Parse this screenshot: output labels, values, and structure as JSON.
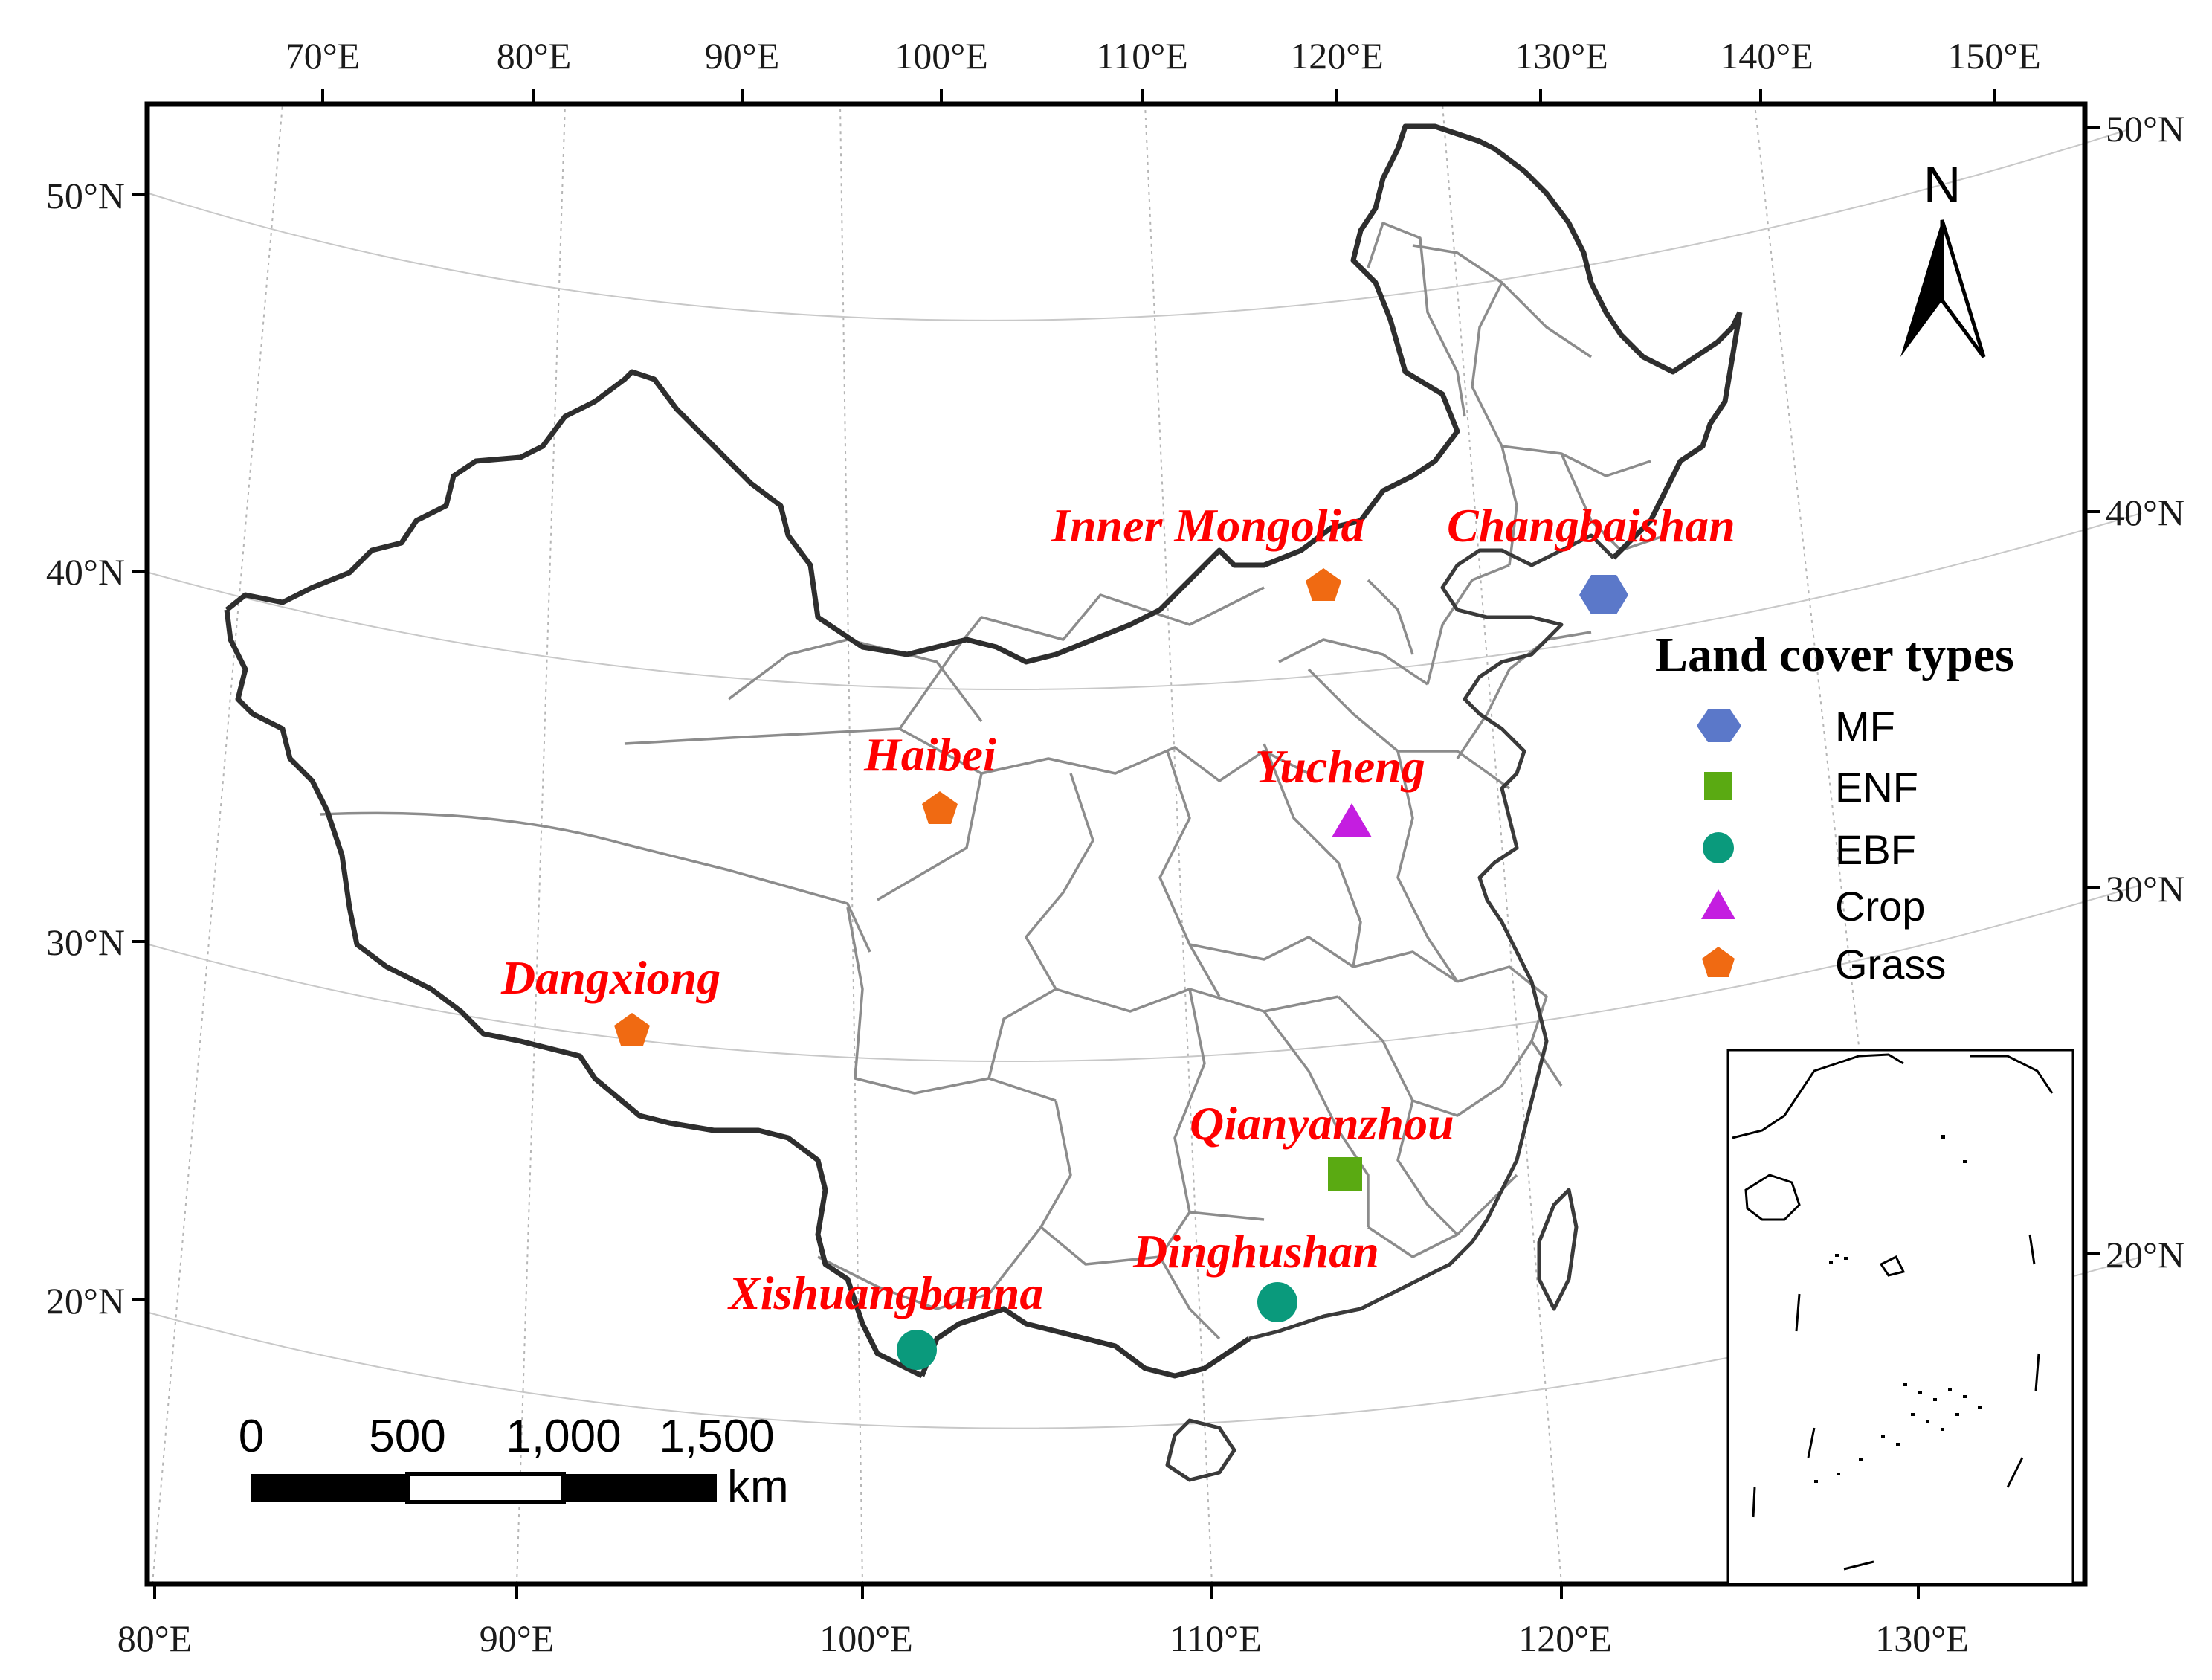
{
  "map": {
    "top_longitude_ticks": [
      "70°E",
      "80°E",
      "90°E",
      "100°E",
      "110°E",
      "120°E",
      "130°E",
      "140°E",
      "150°E"
    ],
    "bottom_longitude_ticks": [
      "80°E",
      "90°E",
      "100°E",
      "110°E",
      "120°E",
      "130°E"
    ],
    "left_latitude_ticks": [
      "50°N",
      "40°N",
      "30°N",
      "20°N"
    ],
    "right_latitude_ticks": [
      "50°N",
      "40°N",
      "30°N",
      "20°N"
    ],
    "north_arrow_label": "N"
  },
  "sites": [
    {
      "name": "Inner Mongolia",
      "type": "Grass"
    },
    {
      "name": "Changbaishan",
      "type": "MF"
    },
    {
      "name": "Haibei",
      "type": "Grass"
    },
    {
      "name": "Yucheng",
      "type": "Crop"
    },
    {
      "name": "Dangxiong",
      "type": "Grass"
    },
    {
      "name": "Qianyanzhou",
      "type": "ENF"
    },
    {
      "name": "Dinghushan",
      "type": "EBF"
    },
    {
      "name": "Xishuangbanna",
      "type": "EBF"
    }
  ],
  "legend": {
    "title": "Land cover types",
    "items": [
      {
        "label": "MF",
        "symbol": "hexagon",
        "color": "#5b78c9"
      },
      {
        "label": "ENF",
        "symbol": "square",
        "color": "#5aaa12"
      },
      {
        "label": "EBF",
        "symbol": "circle",
        "color": "#0a9a7c"
      },
      {
        "label": "Crop",
        "symbol": "triangle",
        "color": "#c41ee0"
      },
      {
        "label": "Grass",
        "symbol": "pentagon",
        "color": "#f06a12"
      }
    ]
  },
  "scale_bar": {
    "ticks": [
      "0",
      "500",
      "1,000",
      "1,500"
    ],
    "unit": "km"
  },
  "colors": {
    "label_red": "#ff0000",
    "border": "#2e2e2e",
    "province": "#8c8c8c"
  }
}
